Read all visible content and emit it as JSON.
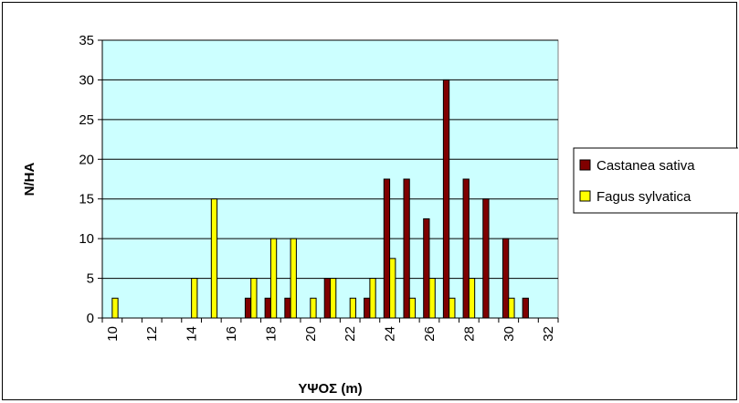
{
  "chart_data": {
    "type": "bar",
    "xlabel": "ΥΨΟΣ (m)",
    "ylabel": "N/HA",
    "ylim": [
      0,
      35
    ],
    "yticks": [
      "0",
      "5",
      "10",
      "15",
      "20",
      "25",
      "30",
      "35"
    ],
    "categories": [
      10,
      11,
      12,
      13,
      14,
      15,
      16,
      17,
      18,
      19,
      20,
      21,
      22,
      23,
      24,
      25,
      26,
      27,
      28,
      29,
      30,
      31
    ],
    "xtick_labels": [
      "10",
      "12",
      "14",
      "16",
      "18",
      "20",
      "22",
      "24",
      "26",
      "28",
      "30",
      "32"
    ],
    "series": [
      {
        "name": "Castanea sativa",
        "values": [
          0,
          0,
          0,
          0,
          0,
          0,
          0,
          2.5,
          2.5,
          2.5,
          0,
          5,
          0,
          2.5,
          17.5,
          17.5,
          12.5,
          30,
          17.5,
          15,
          10,
          2.5
        ]
      },
      {
        "name": "Fagus sylvatica",
        "values": [
          2.5,
          0,
          0,
          0,
          5,
          15,
          0,
          5,
          10,
          10,
          2.5,
          5,
          2.5,
          5,
          7.5,
          2.5,
          5,
          2.5,
          5,
          0,
          2.5,
          0
        ]
      }
    ],
    "grid": true,
    "legend_position": "right",
    "colors": {
      "plot_background": "#ccffff",
      "gridline": "#000000",
      "Castanea sativa": "#800000",
      "Fagus sylvatica": "#ffff00"
    }
  }
}
